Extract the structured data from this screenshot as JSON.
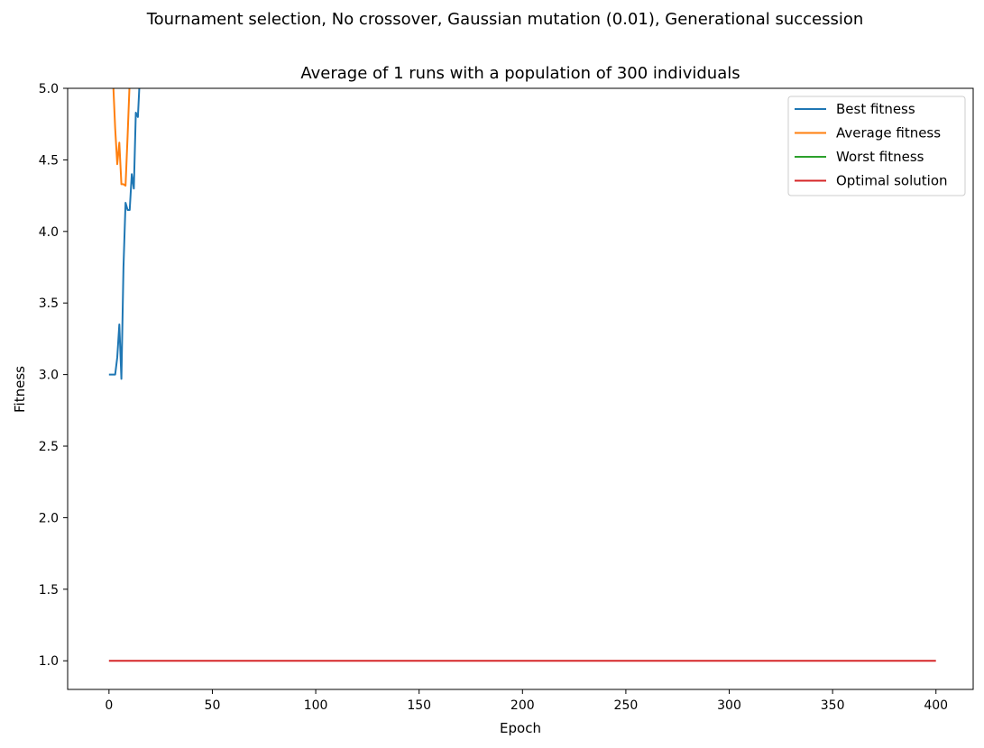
{
  "chart_data": {
    "type": "line",
    "suptitle": "Tournament selection, No crossover, Gaussian mutation (0.01), Generational succession",
    "title": "Average of 1 runs with a population of 300 individuals",
    "xlabel": "Epoch",
    "ylabel": "Fitness",
    "xlim": [
      -20,
      418
    ],
    "ylim": [
      0.8,
      5.0
    ],
    "xticks": [
      0,
      50,
      100,
      150,
      200,
      250,
      300,
      350,
      400
    ],
    "xtick_labels": [
      "0",
      "50",
      "100",
      "150",
      "200",
      "250",
      "300",
      "350",
      "400"
    ],
    "yticks": [
      1.0,
      1.5,
      2.0,
      2.5,
      3.0,
      3.5,
      4.0,
      4.5,
      5.0
    ],
    "ytick_labels": [
      "1.0",
      "1.5",
      "2.0",
      "2.5",
      "3.0",
      "3.5",
      "4.0",
      "4.5",
      "5.0"
    ],
    "grid": false,
    "legend_position": "top-right",
    "series": [
      {
        "name": "Best fitness",
        "color": "#1f77b4",
        "x": [
          0,
          1,
          2,
          3,
          4,
          5,
          6,
          7,
          8,
          9,
          10,
          11,
          12,
          13,
          14,
          15
        ],
        "y": [
          3.0,
          3.0,
          3.0,
          3.0,
          3.12,
          3.35,
          2.97,
          3.75,
          4.2,
          4.15,
          4.15,
          4.4,
          4.3,
          4.83,
          4.8,
          5.1
        ]
      },
      {
        "name": "Average fitness",
        "color": "#ff7f0e",
        "x": [
          2,
          3,
          4,
          5,
          6,
          7,
          8,
          9,
          10
        ],
        "y": [
          5.05,
          4.72,
          4.47,
          4.62,
          4.33,
          4.33,
          4.32,
          4.67,
          5.05
        ]
      },
      {
        "name": "Worst fitness",
        "color": "#2ca02c",
        "x": [],
        "y": []
      },
      {
        "name": "Optimal solution",
        "color": "#d62728",
        "x": [
          0,
          400
        ],
        "y": [
          1.0,
          1.0
        ]
      }
    ]
  }
}
